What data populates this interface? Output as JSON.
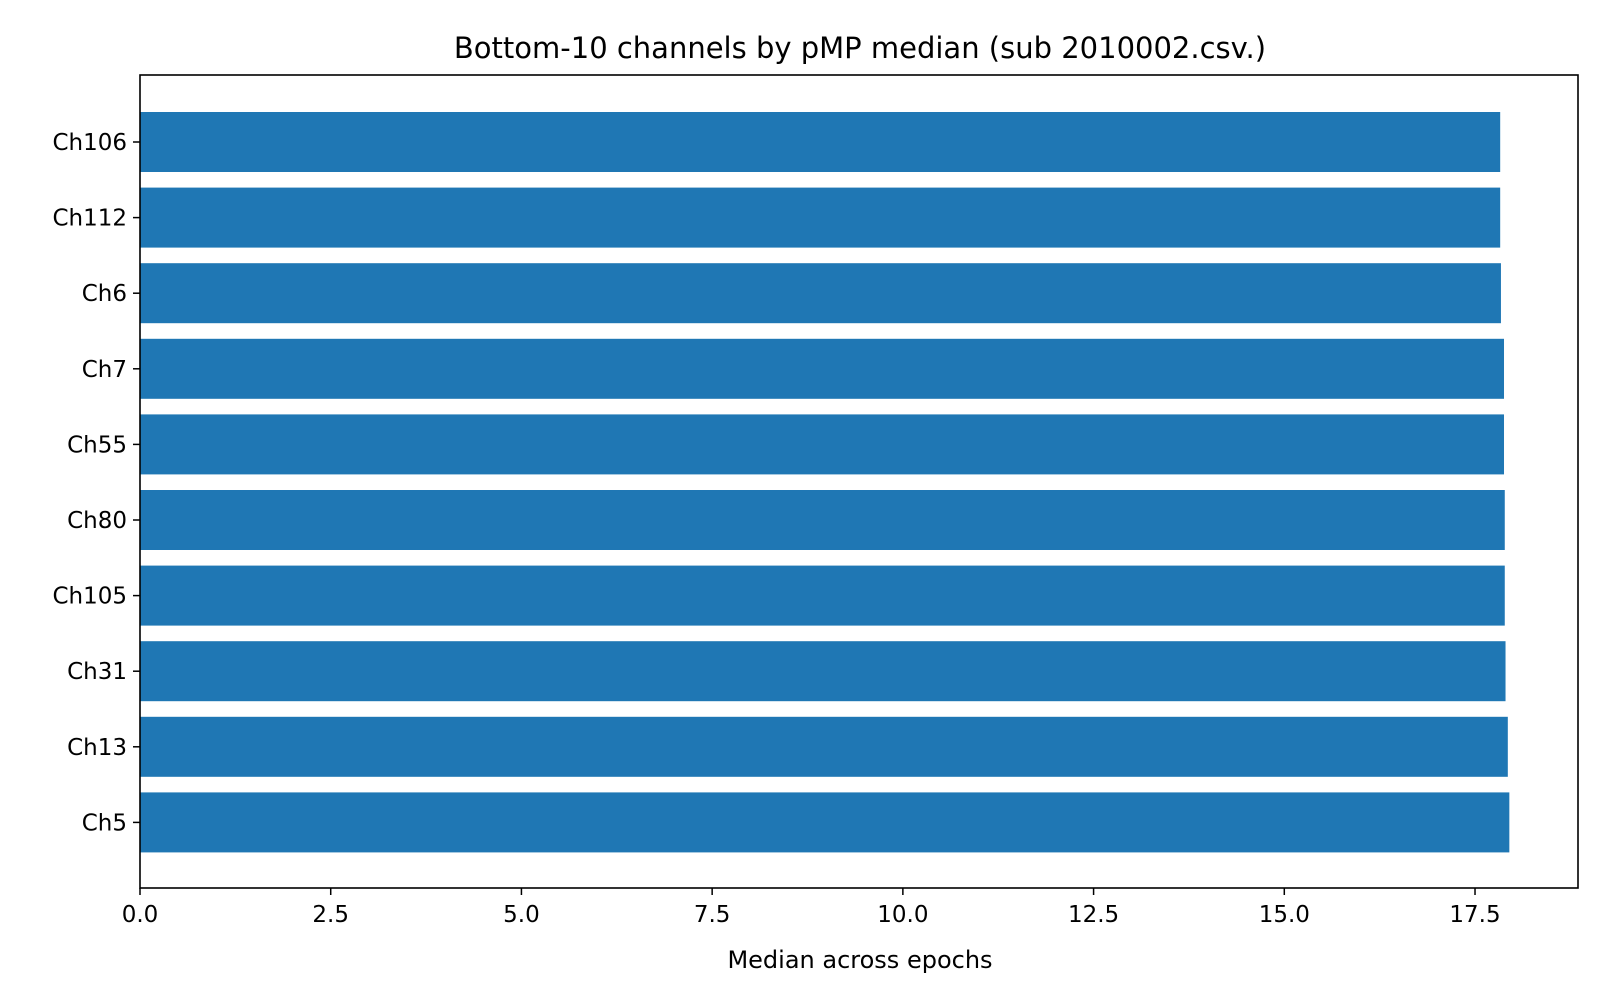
{
  "colors": {
    "bar": "#1f77b4",
    "axis": "#000000",
    "background": "#ffffff"
  },
  "chart_data": {
    "type": "bar",
    "orientation": "horizontal",
    "title": "Bottom-10 channels by pMP median (sub 2010002.csv.)",
    "xlabel": "Median across epochs",
    "ylabel": "",
    "categories": [
      "Ch106",
      "Ch112",
      "Ch6",
      "Ch7",
      "Ch55",
      "Ch80",
      "Ch105",
      "Ch31",
      "Ch13",
      "Ch5"
    ],
    "values": [
      17.83,
      17.83,
      17.84,
      17.88,
      17.88,
      17.89,
      17.89,
      17.9,
      17.93,
      17.95
    ],
    "xlim": [
      0,
      18.85
    ],
    "xticks": [
      "0.0",
      "2.5",
      "5.0",
      "7.5",
      "10.0",
      "12.5",
      "15.0",
      "17.5"
    ],
    "grid": false,
    "legend": "none"
  }
}
